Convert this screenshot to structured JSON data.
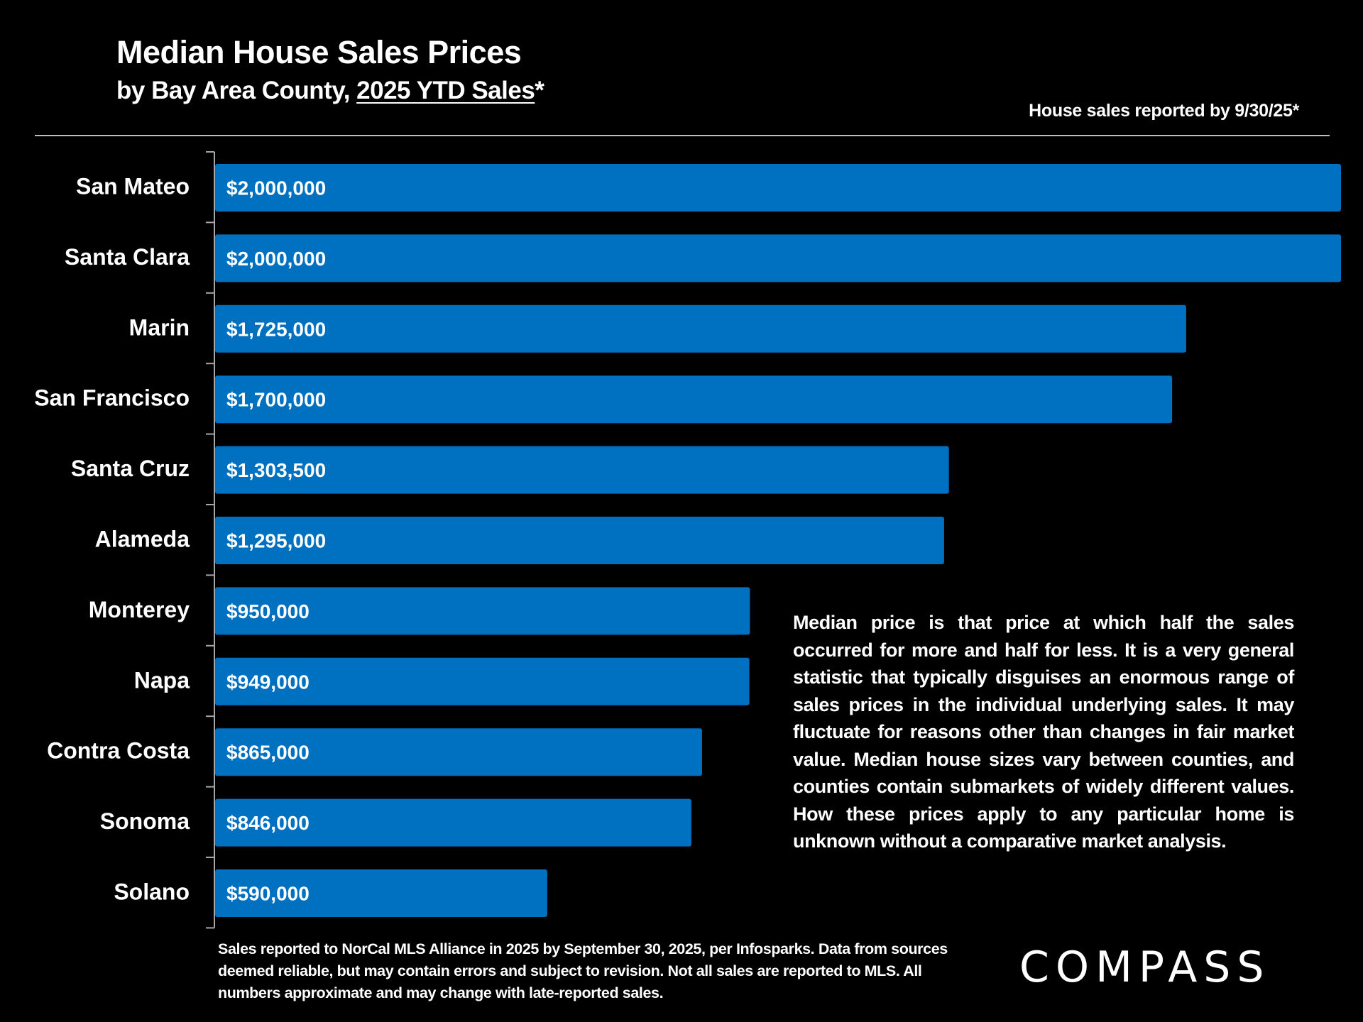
{
  "header": {
    "title": "Median House Sales Prices",
    "subtitle_prefix": "by Bay Area County, ",
    "subtitle_underlined": "2025 YTD Sales",
    "subtitle_suffix": "*",
    "note": "House sales reported by 9/30/25*"
  },
  "description": "Median price is that price at which half the sales occurred for more and half for less. It is a very general statistic that typically disguises an enormous range of sales prices in the individual underlying sales. It may fluctuate for reasons other than changes in fair market value. Median house sizes vary between counties, and counties contain submarkets of widely different values. How these prices apply to any particular home is unknown without a comparative market analysis.",
  "footer": "Sales reported to NorCal MLS Alliance in 2025 by September 30, 2025, per Infosparks. Data from sources deemed reliable, but may contain errors and subject to revision. Not all sales are reported to MLS. All numbers approximate and may change with late-reported sales.",
  "logo": "COMPASS",
  "colors": {
    "bar": "#0070C0",
    "background": "#000000",
    "text": "#FFFFFF",
    "axis": "#A6A6A6"
  },
  "chart_data": {
    "type": "bar",
    "orientation": "horizontal",
    "title": "Median House Sales Prices",
    "subtitle": "by Bay Area County, 2025 YTD Sales*",
    "xlabel": "",
    "ylabel": "",
    "xlim": [
      0,
      2000000
    ],
    "grid": false,
    "categories": [
      "San Mateo",
      "Santa Clara",
      "Marin",
      "San Francisco",
      "Santa Cruz",
      "Alameda",
      "Monterey",
      "Napa",
      "Contra Costa",
      "Sonoma",
      "Solano"
    ],
    "values": [
      2000000,
      2000000,
      1725000,
      1700000,
      1303500,
      1295000,
      950000,
      949000,
      865000,
      846000,
      590000
    ],
    "data_labels": [
      "$2,000,000",
      "$2,000,000",
      "$1,725,000",
      "$1,700,000",
      "$1,303,500",
      "$1,295,000",
      "$950,000",
      "$949,000",
      "$865,000",
      "$846,000",
      "$590,000"
    ]
  }
}
